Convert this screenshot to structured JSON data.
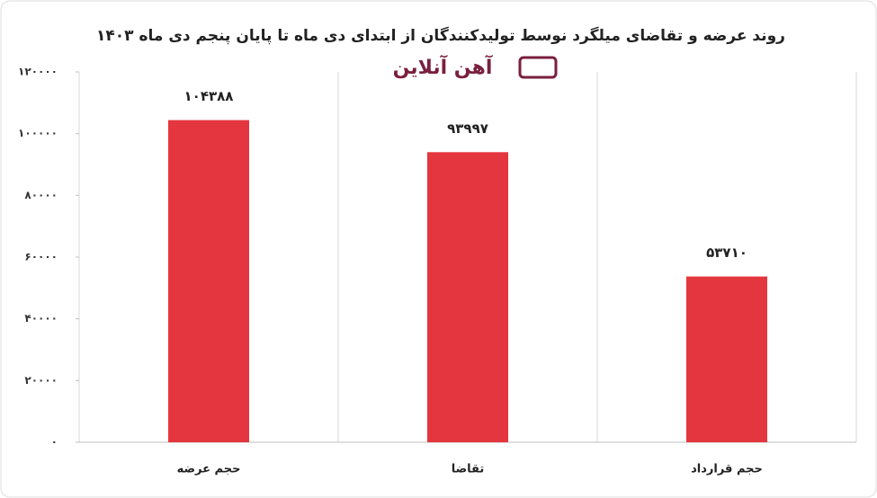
{
  "chart_data": {
    "type": "bar",
    "title": "روند عرضه و تقاضای میلگرد نوسط تولیدکنندگان از ابتدای دی ماه تا پایان پنجم دی ماه ۱۴۰۳",
    "logo": "آهن آنلاین",
    "categories": [
      "حجم عرضه",
      "تقاضا",
      "حجم قرارداد"
    ],
    "values": [
      104388,
      93997,
      53710
    ],
    "value_labels": [
      "۱۰۴۳۸۸",
      "۹۳۹۹۷",
      "۵۳۷۱۰"
    ],
    "color": "#e4363e",
    "ylim": [
      0,
      120000
    ],
    "yticks": [
      {
        "value": 0,
        "label": "۰"
      },
      {
        "value": 20000,
        "label": "۲۰۰۰۰"
      },
      {
        "value": 40000,
        "label": "۴۰۰۰۰"
      },
      {
        "value": 60000,
        "label": "۶۰۰۰۰"
      },
      {
        "value": 80000,
        "label": "۸۰۰۰۰"
      },
      {
        "value": 100000,
        "label": "۱۰۰۰۰۰"
      },
      {
        "value": 120000,
        "label": "۱۲۰۰۰۰"
      }
    ]
  }
}
